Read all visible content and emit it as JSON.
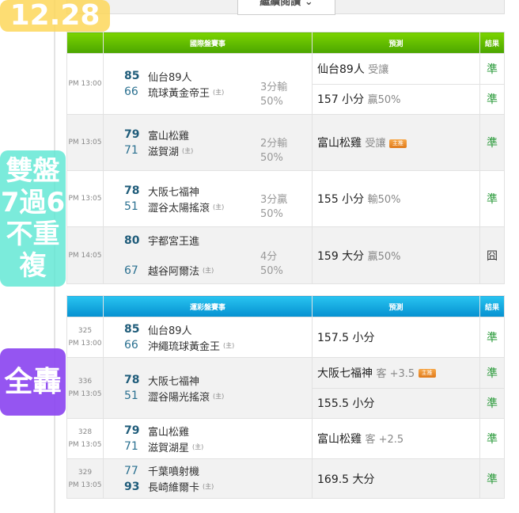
{
  "read_more": "繼續閱讀",
  "overlays": {
    "date": "12.28",
    "promo_line1": "雙盤7過6",
    "promo_line2": "不重複",
    "all_hit": "全轟"
  },
  "intl": {
    "header": {
      "match": "國際盤賽事",
      "prediction": "預測",
      "result": "結果"
    },
    "rows": [
      {
        "time": "PM 13:00",
        "away_score": "85",
        "away": "仙台89人",
        "home_score": "66",
        "home": "琉球黃金帝王",
        "host": "(主)",
        "spread": "3分輸",
        "pct": "50%",
        "preds": [
          {
            "main": "仙台89人",
            "sub": "受讓",
            "result": "準"
          },
          {
            "main": "157 小分",
            "sub": "贏50%",
            "result": "準"
          }
        ]
      },
      {
        "time": "PM 13:05",
        "away_score": "79",
        "away": "富山松雞",
        "home_score": "71",
        "home": "滋賀湖",
        "host": "(主)",
        "spread": "2分輸",
        "pct": "50%",
        "preds": [
          {
            "main": "富山松雞",
            "sub": "受讓",
            "tag": "主推",
            "result": "準"
          }
        ]
      },
      {
        "time": "PM 13:05",
        "away_score": "78",
        "away": "大阪七福神",
        "home_score": "51",
        "home": "澀谷太陽搖滾",
        "host": "(主)",
        "spread": "3分贏",
        "pct": "50%",
        "preds": [
          {
            "main": "155 小分",
            "sub": "輸50%",
            "result": "準"
          }
        ]
      },
      {
        "time": "PM 14:05",
        "away_score": "80",
        "away": "宇都宮王進",
        "home_score": "67",
        "home": "越谷阿爾法",
        "host": "(主)",
        "spread": "4分",
        "pct": "50%",
        "preds": [
          {
            "main": "159 大分",
            "sub": "贏50%",
            "result": "囧"
          }
        ]
      }
    ]
  },
  "lottery": {
    "header": {
      "match": "運彩盤賽事",
      "prediction": "預測",
      "result": "結果"
    },
    "rows": [
      {
        "no": "325",
        "time": "PM 13:00",
        "away_score": "85",
        "away": "仙台89人",
        "home_score": "66",
        "home": "沖繩琉球黃金王",
        "host": "(主)",
        "preds": [
          {
            "main": "157.5 小分",
            "sub": "",
            "result": "準"
          }
        ]
      },
      {
        "no": "336",
        "time": "PM 13:05",
        "away_score": "78",
        "away": "大阪七福神",
        "home_score": "51",
        "home": "澀谷陽光搖滾",
        "host": "(主)",
        "preds": [
          {
            "main": "大阪七福神",
            "sub": "客 +3.5",
            "tag": "主推",
            "result": "準"
          },
          {
            "main": "155.5 小分",
            "sub": "",
            "result": "準"
          }
        ]
      },
      {
        "no": "328",
        "time": "PM 13:05",
        "away_score": "79",
        "away": "富山松雞",
        "home_score": "71",
        "home": "滋賀湖星",
        "host": "(主)",
        "preds": [
          {
            "main": "富山松雞",
            "sub": "客 +2.5",
            "result": "準"
          }
        ]
      },
      {
        "no": "329",
        "time": "PM 13:05",
        "away_score": "77",
        "away": "千葉噴射機",
        "home_score": "93",
        "home": "長崎維爾卡",
        "host": "(主)",
        "preds": [
          {
            "main": "169.5 大分",
            "sub": "",
            "result": "準"
          }
        ]
      }
    ]
  }
}
